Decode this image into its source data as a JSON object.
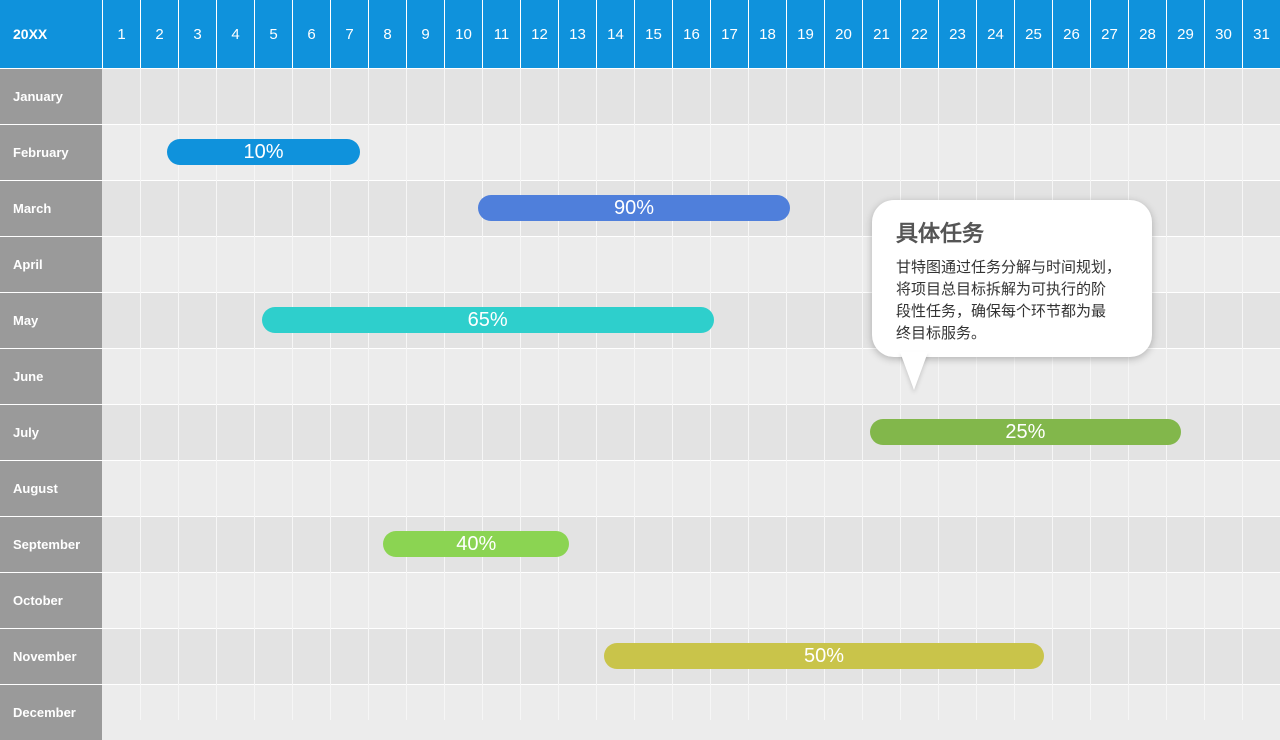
{
  "chart_data": {
    "type": "gantt",
    "corner_label": "20XX",
    "days": [
      "1",
      "2",
      "3",
      "4",
      "5",
      "6",
      "7",
      "8",
      "9",
      "10",
      "11",
      "12",
      "13",
      "14",
      "15",
      "16",
      "17",
      "18",
      "19",
      "20",
      "21",
      "22",
      "23",
      "24",
      "25",
      "26",
      "27",
      "28",
      "29",
      "30",
      "31"
    ],
    "months": [
      "January",
      "February",
      "March",
      "April",
      "May",
      "June",
      "July",
      "August",
      "September",
      "October",
      "November",
      "December"
    ],
    "tasks": [
      {
        "month": "February",
        "start_day": 2.7,
        "end_day": 7.8,
        "label": "10%",
        "color": "#0f92dc"
      },
      {
        "month": "March",
        "start_day": 10.9,
        "end_day": 19.1,
        "label": "90%",
        "color": "#4f7fdb"
      },
      {
        "month": "May",
        "start_day": 5.2,
        "end_day": 17.1,
        "label": "65%",
        "color": "#2ecfcc"
      },
      {
        "month": "July",
        "start_day": 21.2,
        "end_day": 29.4,
        "label": "25%",
        "color": "#82b74b"
      },
      {
        "month": "September",
        "start_day": 8.4,
        "end_day": 13.3,
        "label": "40%",
        "color": "#8bd452"
      },
      {
        "month": "November",
        "start_day": 14.2,
        "end_day": 25.8,
        "label": "50%",
        "color": "#c9c44a"
      }
    ]
  },
  "callout": {
    "title": "具体任务",
    "lines": [
      "甘特图通过任务分解与时间规划，",
      "将项目总目标拆解为可执行的阶",
      "段性任务，确保每个环节都为最",
      "终目标服务。"
    ]
  },
  "colors": {
    "header": "#0f92dc",
    "month_column": "#9a9a9a",
    "row_dark": "#e3e3e3",
    "row_light": "#ececec"
  }
}
